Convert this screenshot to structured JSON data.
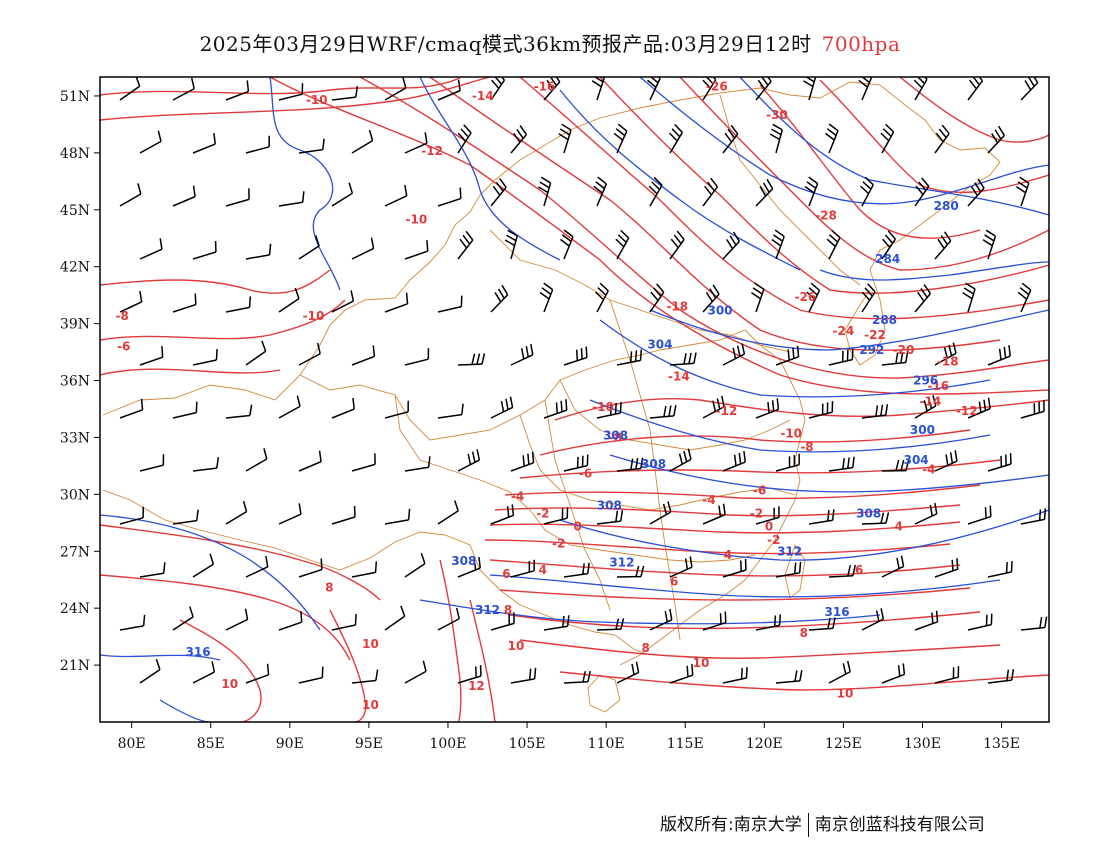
{
  "header": {
    "title_main": "2025年03月29日WRF/cmaq模式36km预报产品:03月29日12时",
    "level": "700hpa"
  },
  "footer": {
    "credit_left": "版权所有:南京大学",
    "credit_right": "南京创蓝科技有限公司"
  },
  "map": {
    "lon_range": [
      78,
      138
    ],
    "lat_range": [
      18,
      52
    ],
    "x_ticks": [
      "80E",
      "85E",
      "90E",
      "95E",
      "100E",
      "105E",
      "110E",
      "115E",
      "120E",
      "125E",
      "130E",
      "135E"
    ],
    "x_tick_values": [
      80,
      85,
      90,
      95,
      100,
      105,
      110,
      115,
      120,
      125,
      130,
      135
    ],
    "y_ticks": [
      "51N",
      "48N",
      "45N",
      "42N",
      "39N",
      "36N",
      "33N",
      "30N",
      "27N",
      "24N",
      "21N"
    ],
    "y_tick_values": [
      51,
      48,
      45,
      42,
      39,
      36,
      33,
      30,
      27,
      24,
      21
    ],
    "colors": {
      "height_contour": "#2a4fd8",
      "temperature_contour": "#e23a3a",
      "boundary": "#d4893a",
      "wind_barb": "#000000"
    },
    "height_labels": [
      {
        "text": "280",
        "lon": 131.5,
        "lat": 45.2
      },
      {
        "text": "284",
        "lon": 127.8,
        "lat": 42.4
      },
      {
        "text": "288",
        "lon": 127.6,
        "lat": 39.2
      },
      {
        "text": "292",
        "lon": 126.8,
        "lat": 37.6
      },
      {
        "text": "296",
        "lon": 130.2,
        "lat": 36.0
      },
      {
        "text": "300",
        "lon": 117.2,
        "lat": 39.7
      },
      {
        "text": "300",
        "lon": 130.0,
        "lat": 33.4
      },
      {
        "text": "304",
        "lon": 113.4,
        "lat": 37.9
      },
      {
        "text": "304",
        "lon": 129.6,
        "lat": 31.8
      },
      {
        "text": "308",
        "lon": 110.6,
        "lat": 33.1
      },
      {
        "text": "308",
        "lon": 113.0,
        "lat": 31.6
      },
      {
        "text": "308",
        "lon": 110.2,
        "lat": 29.4
      },
      {
        "text": "308",
        "lon": 126.6,
        "lat": 29.0
      },
      {
        "text": "308",
        "lon": 101.0,
        "lat": 26.5
      },
      {
        "text": "312",
        "lon": 111.0,
        "lat": 26.4
      },
      {
        "text": "312",
        "lon": 121.6,
        "lat": 27.0
      },
      {
        "text": "312",
        "lon": 102.5,
        "lat": 23.9
      },
      {
        "text": "316",
        "lon": 124.6,
        "lat": 23.8
      },
      {
        "text": "316",
        "lon": 84.2,
        "lat": 21.7
      }
    ],
    "temperature_labels": [
      {
        "text": "-10",
        "lon": 91.7,
        "lat": 50.8
      },
      {
        "text": "-14",
        "lon": 102.2,
        "lat": 51.0
      },
      {
        "text": "-16",
        "lon": 106.1,
        "lat": 51.5
      },
      {
        "text": "-26",
        "lon": 117.0,
        "lat": 51.5
      },
      {
        "text": "-30",
        "lon": 120.8,
        "lat": 50.0
      },
      {
        "text": "-12",
        "lon": 99.0,
        "lat": 48.1
      },
      {
        "text": "-10",
        "lon": 98.0,
        "lat": 44.5
      },
      {
        "text": "-28",
        "lon": 123.9,
        "lat": 44.7
      },
      {
        "text": "-26",
        "lon": 122.6,
        "lat": 40.4
      },
      {
        "text": "-24",
        "lon": 125.0,
        "lat": 38.6
      },
      {
        "text": "-22",
        "lon": 127.0,
        "lat": 38.4
      },
      {
        "text": "-20",
        "lon": 128.8,
        "lat": 37.6
      },
      {
        "text": "-18",
        "lon": 131.6,
        "lat": 37.0
      },
      {
        "text": "-16",
        "lon": 131.0,
        "lat": 35.7
      },
      {
        "text": "-14",
        "lon": 130.5,
        "lat": 34.9
      },
      {
        "text": "-12",
        "lon": 132.8,
        "lat": 34.4
      },
      {
        "text": "-18",
        "lon": 114.5,
        "lat": 39.9
      },
      {
        "text": "-14",
        "lon": 114.6,
        "lat": 36.2
      },
      {
        "text": "-12",
        "lon": 117.6,
        "lat": 34.4
      },
      {
        "text": "-10",
        "lon": 121.7,
        "lat": 33.2
      },
      {
        "text": "-8",
        "lon": 122.7,
        "lat": 32.5
      },
      {
        "text": "-4",
        "lon": 130.4,
        "lat": 31.3
      },
      {
        "text": "-6",
        "lon": 119.7,
        "lat": 30.2
      },
      {
        "text": "-10",
        "lon": 91.5,
        "lat": 39.4
      },
      {
        "text": "-8",
        "lon": 79.4,
        "lat": 39.4
      },
      {
        "text": "-6",
        "lon": 79.5,
        "lat": 37.8
      },
      {
        "text": "-10",
        "lon": 109.8,
        "lat": 34.6
      },
      {
        "text": "-8",
        "lon": 110.6,
        "lat": 33.0
      },
      {
        "text": "-6",
        "lon": 108.7,
        "lat": 31.1
      },
      {
        "text": "-4",
        "lon": 104.4,
        "lat": 29.9
      },
      {
        "text": "-4",
        "lon": 116.5,
        "lat": 29.7
      },
      {
        "text": "-2",
        "lon": 106.0,
        "lat": 29.0
      },
      {
        "text": "-2",
        "lon": 119.5,
        "lat": 29.0
      },
      {
        "text": "0",
        "lon": 108.2,
        "lat": 28.3
      },
      {
        "text": "0",
        "lon": 120.3,
        "lat": 28.3
      },
      {
        "text": "-2",
        "lon": 107.0,
        "lat": 27.4
      },
      {
        "text": "-2",
        "lon": 120.6,
        "lat": 27.6
      },
      {
        "text": "4",
        "lon": 128.5,
        "lat": 28.3
      },
      {
        "text": "6",
        "lon": 103.7,
        "lat": 25.8
      },
      {
        "text": "4",
        "lon": 106.0,
        "lat": 26.0
      },
      {
        "text": "4",
        "lon": 117.7,
        "lat": 26.8
      },
      {
        "text": "6",
        "lon": 126.0,
        "lat": 26.0
      },
      {
        "text": "6",
        "lon": 114.3,
        "lat": 25.4
      },
      {
        "text": "8",
        "lon": 92.5,
        "lat": 25.1
      },
      {
        "text": "8",
        "lon": 103.8,
        "lat": 23.9
      },
      {
        "text": "8",
        "lon": 122.5,
        "lat": 22.7
      },
      {
        "text": "8",
        "lon": 112.5,
        "lat": 21.9
      },
      {
        "text": "10",
        "lon": 95.1,
        "lat": 22.1
      },
      {
        "text": "10",
        "lon": 104.3,
        "lat": 22.0
      },
      {
        "text": "10",
        "lon": 116.0,
        "lat": 21.1
      },
      {
        "text": "10",
        "lon": 86.2,
        "lat": 20.0
      },
      {
        "text": "10",
        "lon": 95.1,
        "lat": 18.9
      },
      {
        "text": "10",
        "lon": 125.1,
        "lat": 19.5
      },
      {
        "text": "12",
        "lon": 101.8,
        "lat": 19.9
      }
    ]
  }
}
